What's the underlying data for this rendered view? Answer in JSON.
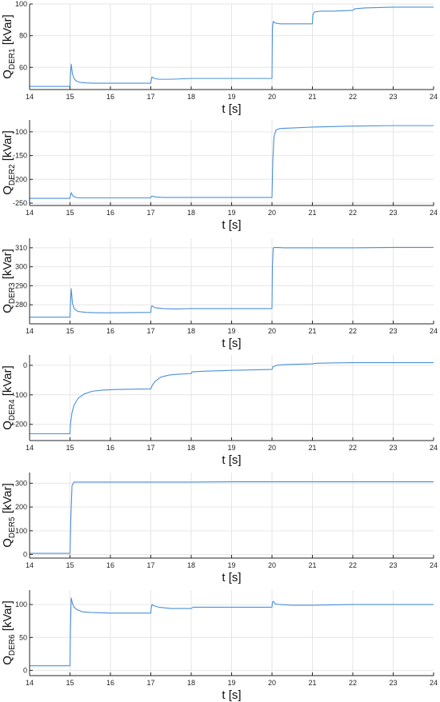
{
  "chart_data": [
    {
      "type": "line",
      "ylabel_prefix": "Q",
      "ylabel_subscript": "DER1",
      "ylabel_unit": " [kVar]",
      "xlabel": "t [s]",
      "xlim": [
        14,
        24
      ],
      "ylim": [
        46,
        100
      ],
      "xticks": [
        14,
        15,
        16,
        17,
        18,
        19,
        20,
        21,
        22,
        23,
        24
      ],
      "yticks": [
        60,
        80,
        100
      ],
      "grid": true,
      "series": [
        {
          "color": "#4a90d9",
          "x": [
            14,
            15,
            15.01,
            15.03,
            15.06,
            15.1,
            15.15,
            15.25,
            15.4,
            15.6,
            16,
            17,
            17.01,
            17.03,
            17.08,
            17.2,
            17.5,
            18,
            20,
            20.01,
            20.03,
            20.08,
            20.2,
            20.5,
            21,
            21.01,
            21.05,
            21.2,
            21.5,
            22,
            22.05,
            22.3,
            23,
            24
          ],
          "y": [
            48,
            48,
            55,
            62,
            56,
            53,
            51.5,
            50.5,
            50.2,
            50,
            50,
            50,
            52,
            54,
            53,
            52.5,
            52.5,
            53,
            53,
            85,
            89,
            88,
            87.5,
            87.5,
            87.5,
            93,
            95,
            95.5,
            95.5,
            96,
            97,
            97.5,
            98,
            98
          ]
        }
      ]
    },
    {
      "type": "line",
      "ylabel_prefix": "Q",
      "ylabel_subscript": "DER2",
      "ylabel_unit": " [kVar]",
      "xlabel": "t [s]",
      "xlim": [
        14,
        24
      ],
      "ylim": [
        -255,
        -75
      ],
      "xticks": [
        14,
        15,
        16,
        17,
        18,
        19,
        20,
        21,
        22,
        23,
        24
      ],
      "yticks": [
        -250,
        -200,
        -150,
        -100
      ],
      "grid": true,
      "series": [
        {
          "color": "#4a90d9",
          "x": [
            14,
            15,
            15.01,
            15.03,
            15.08,
            15.2,
            16,
            17,
            17.01,
            17.03,
            17.1,
            17.3,
            18,
            20,
            20.02,
            20.05,
            20.1,
            20.2,
            20.5,
            21,
            22,
            23,
            24
          ],
          "y": [
            -240,
            -240,
            -235,
            -228,
            -236,
            -239,
            -239,
            -239,
            -236,
            -235,
            -237,
            -238,
            -238,
            -238,
            -160,
            -110,
            -96,
            -93,
            -92,
            -90,
            -88,
            -87,
            -87
          ]
        }
      ]
    },
    {
      "type": "line",
      "ylabel_prefix": "Q",
      "ylabel_subscript": "DER3",
      "ylabel_unit": " [kVar]",
      "xlabel": "t [s]",
      "xlim": [
        14,
        24
      ],
      "ylim": [
        270,
        315
      ],
      "xticks": [
        14,
        15,
        16,
        17,
        18,
        19,
        20,
        21,
        22,
        23,
        24
      ],
      "yticks": [
        280,
        290,
        300,
        310
      ],
      "grid": true,
      "series": [
        {
          "color": "#4a90d9",
          "x": [
            14,
            15,
            15.01,
            15.03,
            15.06,
            15.1,
            15.2,
            15.4,
            15.7,
            16,
            17,
            17.01,
            17.03,
            17.1,
            17.3,
            17.6,
            18,
            20,
            20.01,
            20.03,
            20.1,
            20.3,
            21,
            22,
            23,
            24
          ],
          "y": [
            273.5,
            273.5,
            280,
            288.5,
            281,
            278,
            276.5,
            276,
            275.8,
            275.8,
            276,
            278.5,
            279.5,
            278.5,
            278,
            277.8,
            278,
            278,
            300,
            310,
            310.2,
            310,
            310,
            310,
            310.2,
            310.2
          ]
        }
      ]
    },
    {
      "type": "line",
      "ylabel_prefix": "Q",
      "ylabel_subscript": "DER4",
      "ylabel_unit": " [kVar]",
      "xlabel": "t [s]",
      "xlim": [
        14,
        24
      ],
      "ylim": [
        -255,
        35
      ],
      "xticks": [
        14,
        15,
        16,
        17,
        18,
        19,
        20,
        21,
        22,
        23,
        24
      ],
      "yticks": [
        -200,
        -100,
        0
      ],
      "grid": true,
      "series": [
        {
          "color": "#4a90d9",
          "x": [
            14,
            15,
            15.01,
            15.05,
            15.1,
            15.2,
            15.35,
            15.55,
            15.8,
            16.1,
            16.5,
            17,
            17.02,
            17.1,
            17.25,
            17.45,
            17.7,
            18,
            18.02,
            18.3,
            19,
            20,
            20.02,
            20.15,
            20.4,
            21,
            21.1,
            21.5,
            22,
            23,
            24
          ],
          "y": [
            -232,
            -232,
            -200,
            -160,
            -135,
            -112,
            -97,
            -88,
            -84,
            -82,
            -81,
            -80,
            -72,
            -55,
            -40,
            -33,
            -30,
            -28,
            -22,
            -20,
            -17,
            -14,
            -5,
            1,
            3,
            5,
            7,
            8,
            9,
            9,
            9
          ]
        }
      ]
    },
    {
      "type": "line",
      "ylabel_prefix": "Q",
      "ylabel_subscript": "DER5",
      "ylabel_unit": " [kVar]",
      "xlabel": "t [s]",
      "xlim": [
        14,
        24
      ],
      "ylim": [
        -15,
        345
      ],
      "xticks": [
        14,
        15,
        16,
        17,
        18,
        19,
        20,
        21,
        22,
        23,
        24
      ],
      "yticks": [
        0,
        100,
        200,
        300
      ],
      "grid": true,
      "series": [
        {
          "color": "#4a90d9",
          "x": [
            14,
            15,
            15.02,
            15.05,
            15.1,
            16,
            17,
            18,
            19,
            20,
            21,
            22,
            23,
            24
          ],
          "y": [
            5,
            5,
            150,
            290,
            305,
            305,
            305,
            305,
            306,
            306,
            306,
            306,
            306,
            306
          ]
        }
      ]
    },
    {
      "type": "line",
      "ylabel_prefix": "Q",
      "ylabel_subscript": "DER6",
      "ylabel_unit": " [kVar]",
      "xlabel": "t [s]",
      "xlim": [
        14,
        24
      ],
      "ylim": [
        -8,
        122
      ],
      "xticks": [
        14,
        15,
        16,
        17,
        18,
        19,
        20,
        21,
        22,
        23,
        24
      ],
      "yticks": [
        0,
        50,
        100
      ],
      "grid": true,
      "series": [
        {
          "color": "#4a90d9",
          "x": [
            14,
            15,
            15.01,
            15.03,
            15.06,
            15.1,
            15.18,
            15.3,
            15.5,
            16,
            17,
            17.01,
            17.03,
            17.08,
            17.2,
            17.5,
            18,
            18.05,
            20,
            20.01,
            20.03,
            20.08,
            20.2,
            20.5,
            21,
            22,
            23,
            24
          ],
          "y": [
            7,
            7,
            60,
            110,
            102,
            96,
            92,
            89,
            88,
            87,
            87,
            95,
            100,
            98,
            96,
            94,
            94,
            96,
            96,
            103,
            105,
            101,
            100,
            99,
            99,
            100,
            100,
            100
          ]
        }
      ]
    }
  ]
}
